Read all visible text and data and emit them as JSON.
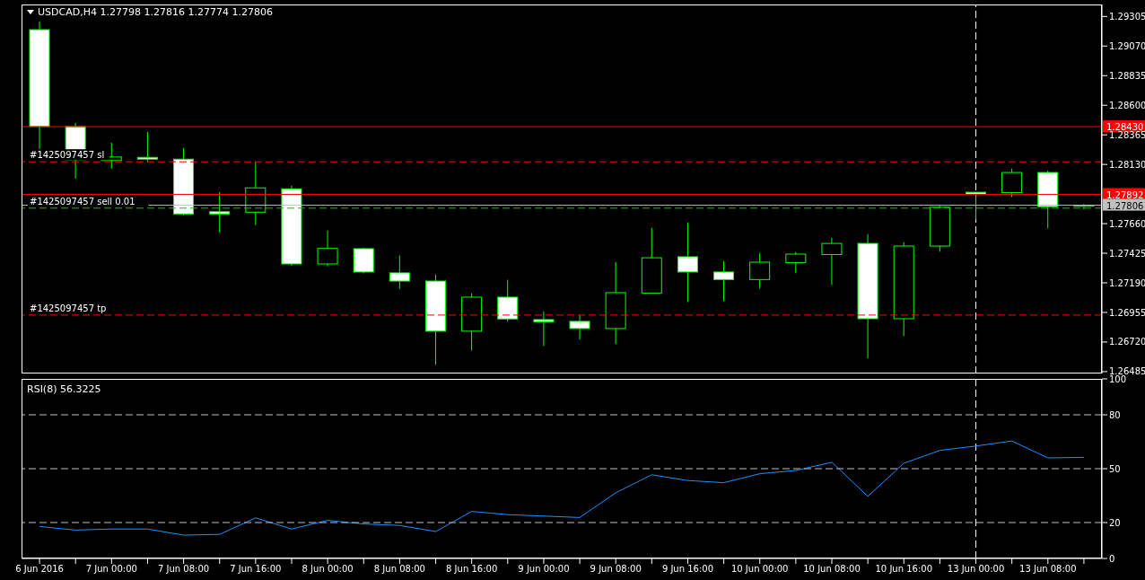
{
  "chart_data": [
    {
      "type": "candlestick",
      "title": "USDCAD,H4  1.27798 1.27816 1.27774 1.27806",
      "color": "#00ff00",
      "categories": [
        "6 Jun 2016",
        null,
        "7 Jun 00:00",
        null,
        "7 Jun 08:00",
        null,
        "7 Jun 16:00",
        null,
        "8 Jun 00:00",
        null,
        "8 Jun 08:00",
        null,
        "8 Jun 16:00",
        null,
        "9 Jun 00:00",
        null,
        "9 Jun 08:00",
        null,
        "9 Jun 16:00",
        null,
        "10 Jun 00:00",
        null,
        "10 Jun 08:00",
        null,
        "10 Jun 16:00",
        null,
        "13 Jun 00:00",
        null,
        "13 Jun 08:00",
        null
      ],
      "ohlc": [
        [
          1.292,
          1.29264,
          1.28246,
          1.28431
        ],
        [
          1.28431,
          1.2846,
          1.28018,
          1.28168
        ],
        [
          1.28161,
          1.28303,
          1.28097,
          1.28189
        ],
        [
          1.28186,
          1.28389,
          1.28147,
          1.28172
        ],
        [
          1.28172,
          1.2826,
          1.27726,
          1.27737
        ],
        [
          1.27755,
          1.27911,
          1.27591,
          1.27737
        ],
        [
          1.27751,
          1.28154,
          1.27648,
          1.27944
        ],
        [
          1.27936,
          1.27961,
          1.27324,
          1.2734
        ],
        [
          1.2734,
          1.27605,
          1.27321,
          1.27463
        ],
        [
          1.27461,
          1.2747,
          1.27264,
          1.27276
        ],
        [
          1.27269,
          1.27406,
          1.27143,
          1.27204
        ],
        [
          1.27204,
          1.27256,
          1.26539,
          1.26806
        ],
        [
          1.26806,
          1.27106,
          1.26653,
          1.27076
        ],
        [
          1.27076,
          1.27214,
          1.26881,
          1.26903
        ],
        [
          1.26898,
          1.26964,
          1.26689,
          1.26881
        ],
        [
          1.26884,
          1.26935,
          1.26739,
          1.26827
        ],
        [
          1.26827,
          1.27356,
          1.26703,
          1.27112
        ],
        [
          1.27109,
          1.27627,
          1.27109,
          1.27389
        ],
        [
          1.27397,
          1.2767,
          1.27036,
          1.27276
        ],
        [
          1.27276,
          1.27363,
          1.27045,
          1.27216
        ],
        [
          1.27216,
          1.27427,
          1.27145,
          1.27354
        ],
        [
          1.27351,
          1.27434,
          1.27266,
          1.27418
        ],
        [
          1.27415,
          1.27548,
          1.27173,
          1.27503
        ],
        [
          1.27503,
          1.27577,
          1.26589,
          1.26905
        ],
        [
          1.26905,
          1.27513,
          1.26767,
          1.27482
        ],
        [
          1.27482,
          1.278,
          1.27437,
          1.2779
        ],
        [
          1.27909,
          1.27911,
          1.27693,
          1.27892
        ],
        [
          1.27906,
          1.28097,
          1.27871,
          1.28066
        ],
        [
          1.28066,
          1.28082,
          1.27622,
          1.27795
        ],
        [
          1.27798,
          1.27816,
          1.27774,
          1.27806
        ]
      ],
      "ylim": [
        1.2647,
        1.294
      ],
      "yticks": [
        1.29305,
        {
          "value": 1.2907,
          "label": "1.29070"
        },
        1.28835,
        {
          "value": 1.286,
          "label": "1.28600"
        },
        1.28365,
        {
          "value": 1.2813,
          "label": "1.28130"
        },
        {
          "value": 1.2766,
          "label": "1.27660"
        },
        1.27425,
        {
          "value": 1.2719,
          "label": "1.27190"
        },
        1.26955,
        {
          "value": 1.2672,
          "label": "1.26720"
        },
        1.26485
      ],
      "ref_lines": [
        {
          "axis": "y",
          "value": 1.2843,
          "label": "1.28430",
          "color": "#ff0000",
          "line_style": "solid"
        },
        {
          "axis": "y",
          "value": 1.28151,
          "label": "#1425097457 sl",
          "color": "#ff0000",
          "line_style": "dashed"
        },
        {
          "axis": "y",
          "value": 1.27892,
          "label": "1.27892",
          "color": "#ff0000",
          "line_style": "solid"
        },
        {
          "axis": "y",
          "value": 1.27806,
          "label": "1.27806",
          "color": "#c0c0c0",
          "line_style": "solid"
        },
        {
          "axis": "y",
          "value": 1.27783,
          "label": "#1425097457 sell 0.01",
          "color": "#00c800",
          "line_style": "dashed"
        },
        {
          "axis": "y",
          "value": 1.26934,
          "label": "#1425097457 tp",
          "color": "#ff0000",
          "line_style": "dashed"
        },
        {
          "axis": "x",
          "value": "13 Jun 00:00",
          "color": "#ffffff",
          "line_style": "dashed"
        }
      ],
      "tick_labels": "y"
    },
    {
      "type": "line",
      "title": "RSI(8) 56.3225",
      "color": "#1e90ff",
      "marker": "none",
      "categories": [
        "6 Jun 2016",
        null,
        "7 Jun 00:00",
        null,
        "7 Jun 08:00",
        null,
        "7 Jun 16:00",
        null,
        "8 Jun 00:00",
        null,
        "8 Jun 08:00",
        null,
        "8 Jun 16:00",
        null,
        "9 Jun 00:00",
        null,
        "9 Jun 08:00",
        null,
        "9 Jun 16:00",
        null,
        "10 Jun 00:00",
        null,
        "10 Jun 08:00",
        null,
        "10 Jun 16:00",
        null,
        "13 Jun 00:00",
        null,
        "13 Jun 08:00",
        null
      ],
      "values": [
        17.8,
        15.8,
        16.4,
        16.4,
        13.0,
        13.4,
        22.6,
        16.4,
        21.2,
        19.2,
        18.4,
        15.0,
        26.2,
        24.4,
        23.6,
        22.8,
        36.6,
        46.6,
        43.4,
        42.2,
        47.2,
        49.0,
        53.6,
        34.6,
        53.0,
        60.2,
        62.6,
        65.4,
        56.0,
        56.3
      ],
      "ylim": [
        0,
        100
      ],
      "yticks": [
        0,
        20,
        50,
        80,
        100
      ],
      "ref_lines": [
        {
          "axis": "y",
          "value": 80,
          "color": "#c0c0c0",
          "line_style": "dashed"
        },
        {
          "axis": "y",
          "value": 50,
          "color": "#c0c0c0",
          "line_style": "dashed"
        },
        {
          "axis": "y",
          "value": 20,
          "color": "#c0c0c0",
          "line_style": "dashed"
        },
        {
          "axis": "x",
          "value": "13 Jun 00:00",
          "color": "#ffffff",
          "line_style": "dashed"
        }
      ]
    }
  ]
}
